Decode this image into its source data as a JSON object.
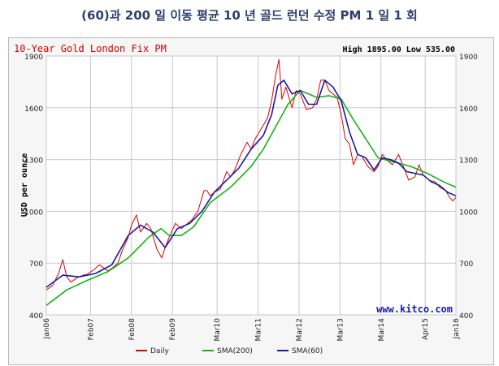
{
  "page_title": "(60)과 200 일 이동 평균 10 년 골드 런던 수정 PM 1 일 1 회",
  "chart_data": {
    "type": "line",
    "title": "10-Year Gold London Fix PM",
    "high_low_text": "High 1895.00 Low 535.00",
    "ylabel": "USD per ounce",
    "watermark": "www.kitco.com",
    "ylim": [
      400,
      1900
    ],
    "yticks": [
      400,
      700,
      1000,
      1300,
      1600,
      1900
    ],
    "x_range": [
      2006.0,
      2016.0
    ],
    "xticks": [
      {
        "label": "Jan06",
        "x": 2006.0
      },
      {
        "label": "Feb07",
        "x": 2007.08
      },
      {
        "label": "Feb08",
        "x": 2008.08
      },
      {
        "label": "Feb09",
        "x": 2009.08
      },
      {
        "label": "Mar10",
        "x": 2010.17
      },
      {
        "label": "Mar11",
        "x": 2011.17
      },
      {
        "label": "Mar12",
        "x": 2012.17
      },
      {
        "label": "Mar13",
        "x": 2013.17
      },
      {
        "label": "Mar14",
        "x": 2014.17
      },
      {
        "label": "Apr15",
        "x": 2015.25
      },
      {
        "label": "Jan16",
        "x": 2016.0
      }
    ],
    "grid": true,
    "legend_position": "bottom",
    "series": [
      {
        "name": "Daily",
        "color": "#dd0000",
        "x": [
          2006.0,
          2006.15,
          2006.3,
          2006.4,
          2006.5,
          2006.6,
          2006.75,
          2006.9,
          2007.0,
          2007.15,
          2007.3,
          2007.5,
          2007.6,
          2007.75,
          2007.85,
          2008.0,
          2008.08,
          2008.2,
          2008.3,
          2008.45,
          2008.55,
          2008.7,
          2008.82,
          2008.9,
          2009.0,
          2009.15,
          2009.3,
          2009.45,
          2009.55,
          2009.7,
          2009.85,
          2009.92,
          2010.0,
          2010.1,
          2010.25,
          2010.4,
          2010.5,
          2010.6,
          2010.75,
          2010.9,
          2011.0,
          2011.1,
          2011.25,
          2011.4,
          2011.5,
          2011.6,
          2011.68,
          2011.75,
          2011.85,
          2012.0,
          2012.1,
          2012.2,
          2012.35,
          2012.5,
          2012.6,
          2012.7,
          2012.8,
          2012.9,
          2013.0,
          2013.1,
          2013.2,
          2013.3,
          2013.4,
          2013.5,
          2013.6,
          2013.7,
          2013.85,
          2014.0,
          2014.1,
          2014.2,
          2014.3,
          2014.45,
          2014.6,
          2014.75,
          2014.85,
          2015.0,
          2015.1,
          2015.2,
          2015.35,
          2015.5,
          2015.6,
          2015.75,
          2015.85,
          2015.92,
          2016.0
        ],
        "y": [
          545,
          570,
          640,
          720,
          620,
          590,
          615,
          630,
          635,
          660,
          690,
          655,
          670,
          700,
          770,
          850,
          920,
          980,
          880,
          930,
          900,
          780,
          730,
          790,
          850,
          930,
          900,
          930,
          950,
          1000,
          1120,
          1120,
          1090,
          1110,
          1130,
          1230,
          1200,
          1240,
          1330,
          1400,
          1360,
          1420,
          1480,
          1540,
          1640,
          1790,
          1880,
          1650,
          1720,
          1600,
          1700,
          1680,
          1590,
          1600,
          1650,
          1760,
          1760,
          1700,
          1680,
          1660,
          1560,
          1420,
          1390,
          1270,
          1330,
          1320,
          1260,
          1230,
          1260,
          1330,
          1300,
          1270,
          1330,
          1240,
          1180,
          1200,
          1270,
          1210,
          1180,
          1170,
          1140,
          1120,
          1080,
          1060,
          1080
        ]
      },
      {
        "name": "SMA(200)",
        "color": "#16b316",
        "x": [
          2006.0,
          2006.5,
          2007.0,
          2007.5,
          2008.0,
          2008.5,
          2008.8,
          2009.0,
          2009.3,
          2009.6,
          2010.0,
          2010.5,
          2011.0,
          2011.3,
          2011.6,
          2011.9,
          2012.2,
          2012.6,
          2012.9,
          2013.2,
          2013.5,
          2013.8,
          2014.1,
          2014.5,
          2014.9,
          2015.3,
          2015.7,
          2016.0
        ],
        "y": [
          455,
          545,
          600,
          650,
          730,
          850,
          900,
          860,
          860,
          910,
          1050,
          1140,
          1260,
          1360,
          1490,
          1620,
          1700,
          1660,
          1670,
          1650,
          1530,
          1420,
          1310,
          1285,
          1260,
          1220,
          1170,
          1140
        ]
      },
      {
        "name": "SMA(60)",
        "color": "#1a1aa6",
        "x": [
          2006.0,
          2006.4,
          2006.8,
          2007.2,
          2007.6,
          2008.0,
          2008.3,
          2008.6,
          2008.9,
          2009.2,
          2009.5,
          2009.8,
          2010.1,
          2010.4,
          2010.7,
          2011.0,
          2011.3,
          2011.5,
          2011.65,
          2011.8,
          2012.0,
          2012.2,
          2012.4,
          2012.6,
          2012.8,
          2013.0,
          2013.2,
          2013.4,
          2013.6,
          2013.8,
          2014.0,
          2014.2,
          2014.4,
          2014.6,
          2014.8,
          2015.0,
          2015.2,
          2015.4,
          2015.6,
          2015.8,
          2016.0
        ],
        "y": [
          560,
          630,
          620,
          640,
          690,
          860,
          920,
          880,
          790,
          900,
          930,
          1000,
          1110,
          1180,
          1250,
          1360,
          1440,
          1560,
          1730,
          1760,
          1680,
          1700,
          1620,
          1620,
          1760,
          1720,
          1640,
          1460,
          1330,
          1310,
          1240,
          1310,
          1300,
          1280,
          1230,
          1220,
          1210,
          1170,
          1150,
          1110,
          1090
        ]
      }
    ]
  }
}
